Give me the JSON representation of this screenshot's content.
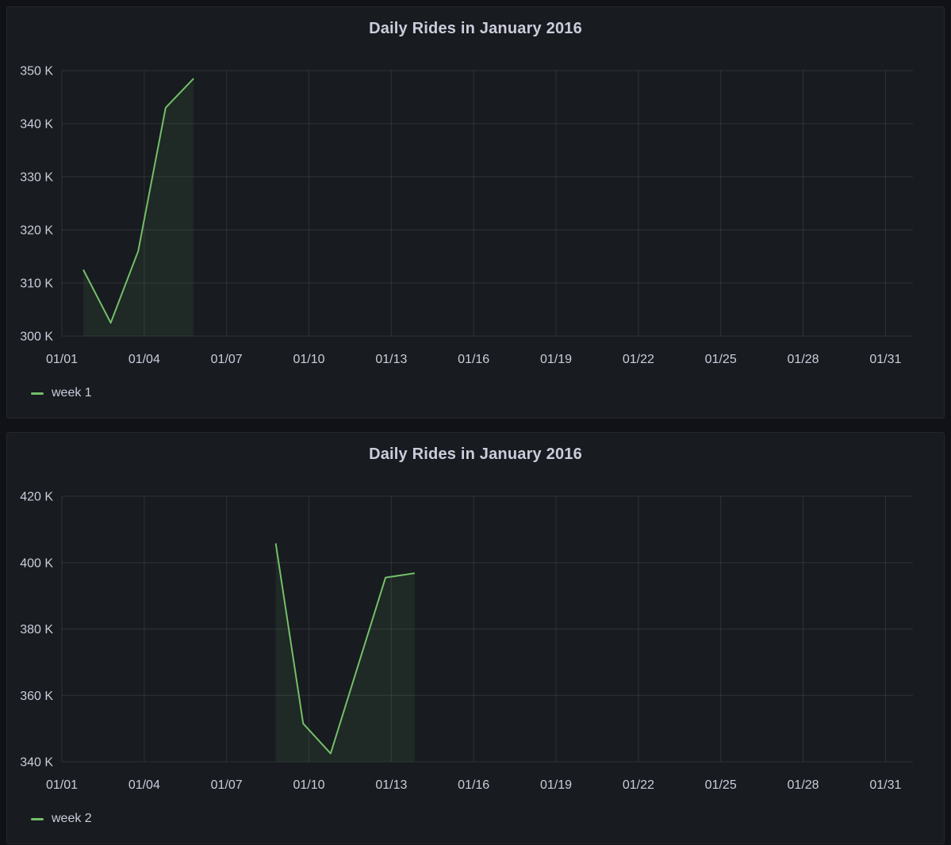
{
  "page": {
    "background": "#111217",
    "panel_background": "#181b1f",
    "accent_green": "#73bf69",
    "text_color": "#ccccdc",
    "grid_color": "rgba(204,204,220,0.13)"
  },
  "panels": [
    {
      "title": "Daily Rides in January 2016",
      "legend_label": "week 1"
    },
    {
      "title": "Daily Rides in January 2016",
      "legend_label": "week 2"
    }
  ],
  "chart_data": [
    {
      "type": "area",
      "title": "Daily Rides in January 2016",
      "xlabel": "",
      "ylabel": "",
      "grid": true,
      "legend": {
        "label": "week 1",
        "position": "bottom-left"
      },
      "line_color": "#73bf69",
      "fill_color": "rgba(115,191,105,0.09)",
      "x_axis": {
        "range_days": [
          1,
          32
        ],
        "tick_days": [
          1,
          4,
          7,
          10,
          13,
          16,
          19,
          22,
          25,
          28,
          31
        ],
        "tick_labels": [
          "01/01",
          "01/04",
          "01/07",
          "01/10",
          "01/13",
          "01/16",
          "01/19",
          "01/22",
          "01/25",
          "01/28",
          "01/31"
        ]
      },
      "y_axis": {
        "min": 300000,
        "max": 350000,
        "tick_values": [
          350000,
          340000,
          330000,
          320000,
          310000,
          300000
        ],
        "tick_labels": [
          "350 K",
          "340 K",
          "330 K",
          "320 K",
          "310 K",
          "300 K"
        ]
      },
      "series": [
        {
          "name": "week 1",
          "points": [
            {
              "x_day": 1.78,
              "value": 312500
            },
            {
              "x_day": 2.78,
              "value": 302500
            },
            {
              "x_day": 3.78,
              "value": 316000
            },
            {
              "x_day": 4.78,
              "value": 343000
            },
            {
              "x_day": 5.8,
              "value": 348500
            }
          ]
        }
      ]
    },
    {
      "type": "area",
      "title": "Daily Rides in January 2016",
      "xlabel": "",
      "ylabel": "",
      "grid": true,
      "legend": {
        "label": "week 2",
        "position": "bottom-left"
      },
      "line_color": "#73bf69",
      "fill_color": "rgba(115,191,105,0.09)",
      "x_axis": {
        "range_days": [
          1,
          32
        ],
        "tick_days": [
          1,
          4,
          7,
          10,
          13,
          16,
          19,
          22,
          25,
          28,
          31
        ],
        "tick_labels": [
          "01/01",
          "01/04",
          "01/07",
          "01/10",
          "01/13",
          "01/16",
          "01/19",
          "01/22",
          "01/25",
          "01/28",
          "01/31"
        ]
      },
      "y_axis": {
        "min": 340000,
        "max": 420000,
        "tick_values": [
          420000,
          400000,
          380000,
          360000,
          340000
        ],
        "tick_labels": [
          "420 K",
          "400 K",
          "380 K",
          "360 K",
          "340 K"
        ]
      },
      "series": [
        {
          "name": "week 2",
          "points": [
            {
              "x_day": 8.79,
              "value": 405800
            },
            {
              "x_day": 9.79,
              "value": 351500
            },
            {
              "x_day": 10.79,
              "value": 342500
            },
            {
              "x_day": 12.79,
              "value": 395500
            },
            {
              "x_day": 13.85,
              "value": 396800
            }
          ]
        }
      ]
    }
  ]
}
